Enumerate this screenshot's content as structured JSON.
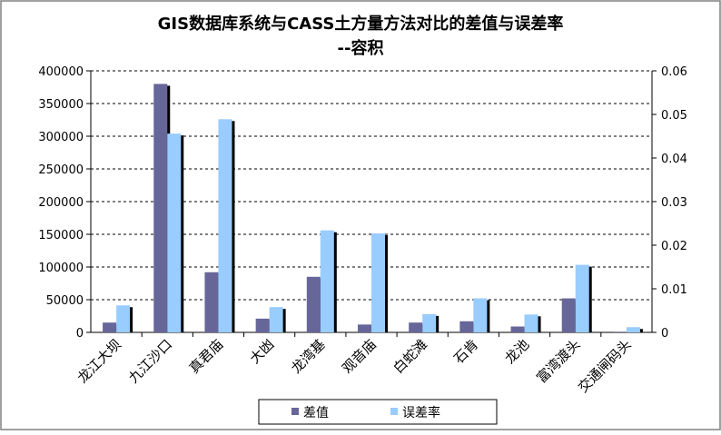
{
  "chart_data": {
    "type": "bar",
    "title_line1": "GIS数据库系统与CASS土方量方法对比的差值与误差率",
    "title_line2": "--容积",
    "categories": [
      "龙江大坝",
      "九江沙口",
      "真君庙",
      "大凼",
      "龙湾基",
      "观音庙",
      "白蛇滩",
      "石肯",
      "龙池",
      "富湾渡头",
      "交通闸码头"
    ],
    "series": [
      {
        "name": "差值",
        "axis": "left",
        "color": "#666699",
        "values": [
          15000,
          380000,
          92000,
          21000,
          85000,
          12000,
          15000,
          17000,
          9000,
          52000,
          1000
        ]
      },
      {
        "name": "误差率",
        "axis": "right",
        "color": "#99ccff",
        "values": [
          0.0062,
          0.0456,
          0.0489,
          0.0058,
          0.0234,
          0.0227,
          0.0042,
          0.0078,
          0.0041,
          0.0155,
          0.0012
        ]
      }
    ],
    "y_left": {
      "min": 0,
      "max": 400000,
      "ticks": [
        "0",
        "50000",
        "100000",
        "150000",
        "200000",
        "250000",
        "300000",
        "350000",
        "400000"
      ]
    },
    "y_right": {
      "min": 0,
      "max": 0.06,
      "ticks": [
        "0",
        "0.01",
        "0.02",
        "0.03",
        "0.04",
        "0.05",
        "0.06"
      ]
    },
    "grid": "horizontal dashed",
    "legend_position": "bottom",
    "plot_background": "#ffffff",
    "frame_color": "#808080"
  }
}
